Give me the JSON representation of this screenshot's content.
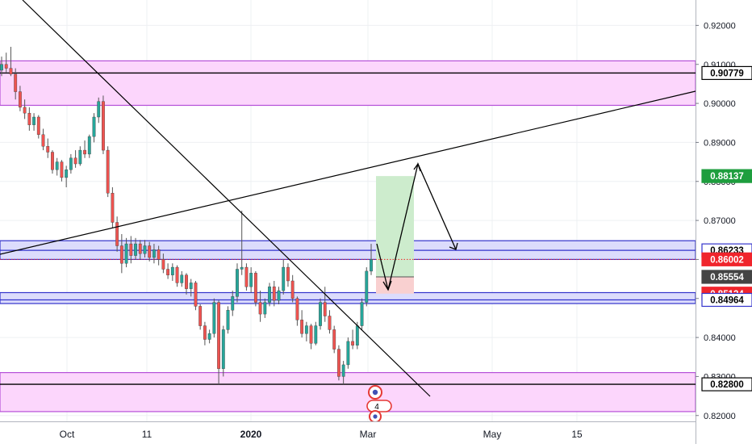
{
  "chart_data": {
    "type": "candlestick",
    "y_axis": {
      "position": "right",
      "range": [
        0.8185,
        0.9265
      ],
      "ticks": [
        0.92,
        0.91,
        0.9,
        0.89,
        0.88,
        0.87,
        0.86,
        0.85,
        0.84,
        0.83,
        0.82
      ],
      "tick_labels": [
        "0.92000",
        "0.91000",
        "0.90000",
        "0.89000",
        "0.88000",
        "0.87000",
        "0.86000",
        "0.85000",
        "0.84000",
        "0.83000",
        "0.82000"
      ]
    },
    "x_axis": {
      "labels": [
        "Oct",
        "11",
        "2020",
        "Mar",
        "May",
        "15"
      ],
      "bold_labels": [
        "2020"
      ]
    },
    "grid": true,
    "price_labels": [
      {
        "text": "0.90779",
        "value": 0.90779,
        "bg": "#ffffff",
        "fg": "#000000",
        "border": "#000000"
      },
      {
        "text": "0.88137",
        "value": 0.88137,
        "bg": "#1e9e3e",
        "fg": "#ffffff",
        "border": "#1e9e3e"
      },
      {
        "text": "0.86233",
        "value": 0.86233,
        "bg": "#ffffff",
        "fg": "#000000",
        "border": "#3333cc"
      },
      {
        "text": "0.86002",
        "value": 0.86002,
        "bg": "#f0252c",
        "fg": "#ffffff",
        "border": "#f0252c"
      },
      {
        "text": "0.85554",
        "value": 0.85554,
        "bg": "#444444",
        "fg": "#ffffff",
        "border": "#444444"
      },
      {
        "text": "0.85124",
        "value": 0.85124,
        "bg": "#f0252c",
        "fg": "#ffffff",
        "border": "#f0252c"
      },
      {
        "text": "0.84964",
        "value": 0.84964,
        "bg": "#ffffff",
        "fg": "#000000",
        "border": "#3333cc"
      },
      {
        "text": "0.82800",
        "value": 0.828,
        "bg": "#ffffff",
        "fg": "#000000",
        "border": "#000000"
      }
    ],
    "zones": [
      {
        "name": "resistance-zone",
        "top": 0.9109,
        "bottom": 0.8995,
        "fill": "#fcd6fc",
        "stroke": "#b54fd8"
      },
      {
        "name": "upper-supply-zone",
        "top": 0.8648,
        "bottom": 0.86,
        "fill": "#dcdcfc",
        "stroke": "#3333cc"
      },
      {
        "name": "lower-supply-zone",
        "top": 0.8515,
        "bottom": 0.8487,
        "fill": "#dcdcfc",
        "stroke": "#3333cc"
      },
      {
        "name": "support-zone",
        "top": 0.831,
        "bottom": 0.821,
        "fill": "#fcd6fc",
        "stroke": "#b54fd8"
      }
    ],
    "horizontal_lines": [
      0.90779,
      0.86233,
      0.84964,
      0.828
    ],
    "position_tool": {
      "type": "long",
      "entry": 0.85554,
      "target": 0.88137,
      "stop": 0.85124
    },
    "marker_count": "4",
    "colors": {
      "up": "#26a69a",
      "down": "#ef5350",
      "wick": "#555555",
      "profit_zone": "#cdeccd",
      "loss_zone": "#f9d0d0",
      "current_price_line": "#f0252c"
    },
    "series": [
      {
        "ohlc": [
          [
            0.9085,
            0.912,
            0.907,
            0.91
          ],
          [
            0.91,
            0.913,
            0.908,
            0.909
          ],
          [
            0.909,
            0.9145,
            0.907,
            0.9075
          ],
          [
            0.9075,
            0.909,
            0.901,
            0.903
          ],
          [
            0.903,
            0.9045,
            0.898,
            0.899
          ],
          [
            0.899,
            0.901,
            0.896,
            0.8975
          ],
          [
            0.8975,
            0.899,
            0.893,
            0.8945
          ],
          [
            0.8945,
            0.8975,
            0.893,
            0.8965
          ],
          [
            0.8965,
            0.897,
            0.891,
            0.892
          ],
          [
            0.892,
            0.8935,
            0.888,
            0.889
          ],
          [
            0.889,
            0.891,
            0.886,
            0.8875
          ],
          [
            0.8875,
            0.888,
            0.882,
            0.883
          ],
          [
            0.883,
            0.886,
            0.8815,
            0.885
          ],
          [
            0.885,
            0.8855,
            0.88,
            0.881
          ],
          [
            0.881,
            0.884,
            0.8785,
            0.883
          ],
          [
            0.883,
            0.887,
            0.882,
            0.886
          ],
          [
            0.886,
            0.888,
            0.8835,
            0.8845
          ],
          [
            0.8845,
            0.889,
            0.884,
            0.888
          ],
          [
            0.888,
            0.8905,
            0.886,
            0.887
          ],
          [
            0.887,
            0.892,
            0.886,
            0.8915
          ],
          [
            0.8915,
            0.8975,
            0.89,
            0.8965
          ],
          [
            0.8965,
            0.9015,
            0.895,
            0.9005
          ],
          [
            0.9005,
            0.902,
            0.887,
            0.888
          ],
          [
            0.888,
            0.889,
            0.876,
            0.877
          ],
          [
            0.877,
            0.8785,
            0.868,
            0.8695
          ],
          [
            0.8695,
            0.871,
            0.862,
            0.8635
          ],
          [
            0.8635,
            0.8665,
            0.8565,
            0.859
          ],
          [
            0.859,
            0.8655,
            0.858,
            0.864
          ],
          [
            0.864,
            0.866,
            0.859,
            0.861
          ],
          [
            0.861,
            0.8655,
            0.86,
            0.864
          ],
          [
            0.864,
            0.865,
            0.86,
            0.8615
          ],
          [
            0.8615,
            0.865,
            0.8605,
            0.8635
          ],
          [
            0.8635,
            0.8645,
            0.8595,
            0.8605
          ],
          [
            0.8605,
            0.864,
            0.859,
            0.8625
          ],
          [
            0.8625,
            0.8635,
            0.8585,
            0.86
          ],
          [
            0.86,
            0.8615,
            0.8565,
            0.8575
          ],
          [
            0.8575,
            0.859,
            0.855,
            0.856
          ],
          [
            0.856,
            0.859,
            0.8545,
            0.858
          ],
          [
            0.858,
            0.8585,
            0.853,
            0.854
          ],
          [
            0.854,
            0.857,
            0.853,
            0.856
          ],
          [
            0.856,
            0.8565,
            0.851,
            0.8525
          ],
          [
            0.8525,
            0.855,
            0.8505,
            0.854
          ],
          [
            0.854,
            0.8545,
            0.847,
            0.848
          ],
          [
            0.848,
            0.8485,
            0.842,
            0.843
          ],
          [
            0.843,
            0.844,
            0.838,
            0.8395
          ],
          [
            0.8395,
            0.842,
            0.8385,
            0.841
          ],
          [
            0.841,
            0.85,
            0.84,
            0.849
          ],
          [
            0.849,
            0.8495,
            0.828,
            0.832
          ],
          [
            0.832,
            0.843,
            0.83,
            0.842
          ],
          [
            0.842,
            0.848,
            0.841,
            0.847
          ],
          [
            0.847,
            0.852,
            0.8455,
            0.8505
          ],
          [
            0.8505,
            0.859,
            0.849,
            0.8575
          ],
          [
            0.8575,
            0.8725,
            0.856,
            0.858
          ],
          [
            0.858,
            0.859,
            0.852,
            0.853
          ],
          [
            0.853,
            0.858,
            0.8515,
            0.8565
          ],
          [
            0.8565,
            0.857,
            0.848,
            0.849
          ],
          [
            0.849,
            0.852,
            0.844,
            0.846
          ],
          [
            0.846,
            0.85,
            0.845,
            0.849
          ],
          [
            0.849,
            0.854,
            0.848,
            0.853
          ],
          [
            0.853,
            0.8545,
            0.848,
            0.8495
          ],
          [
            0.8495,
            0.853,
            0.8485,
            0.852
          ],
          [
            0.852,
            0.86,
            0.851,
            0.858
          ],
          [
            0.858,
            0.859,
            0.853,
            0.8545
          ],
          [
            0.8545,
            0.856,
            0.849,
            0.85
          ],
          [
            0.85,
            0.8505,
            0.843,
            0.8445
          ],
          [
            0.8445,
            0.847,
            0.84,
            0.841
          ],
          [
            0.841,
            0.844,
            0.839,
            0.843
          ],
          [
            0.843,
            0.8435,
            0.837,
            0.8385
          ],
          [
            0.8385,
            0.844,
            0.838,
            0.843
          ],
          [
            0.843,
            0.85,
            0.842,
            0.849
          ],
          [
            0.849,
            0.853,
            0.844,
            0.8455
          ],
          [
            0.8455,
            0.847,
            0.841,
            0.842
          ],
          [
            0.842,
            0.843,
            0.836,
            0.837
          ],
          [
            0.837,
            0.838,
            0.829,
            0.83
          ],
          [
            0.83,
            0.834,
            0.828,
            0.833
          ],
          [
            0.833,
            0.84,
            0.832,
            0.839
          ],
          [
            0.839,
            0.842,
            0.837,
            0.838
          ],
          [
            0.838,
            0.844,
            0.837,
            0.843
          ],
          [
            0.843,
            0.85,
            0.842,
            0.849
          ],
          [
            0.849,
            0.858,
            0.848,
            0.857
          ],
          [
            0.857,
            0.864,
            0.856,
            0.86
          ]
        ]
      }
    ]
  }
}
